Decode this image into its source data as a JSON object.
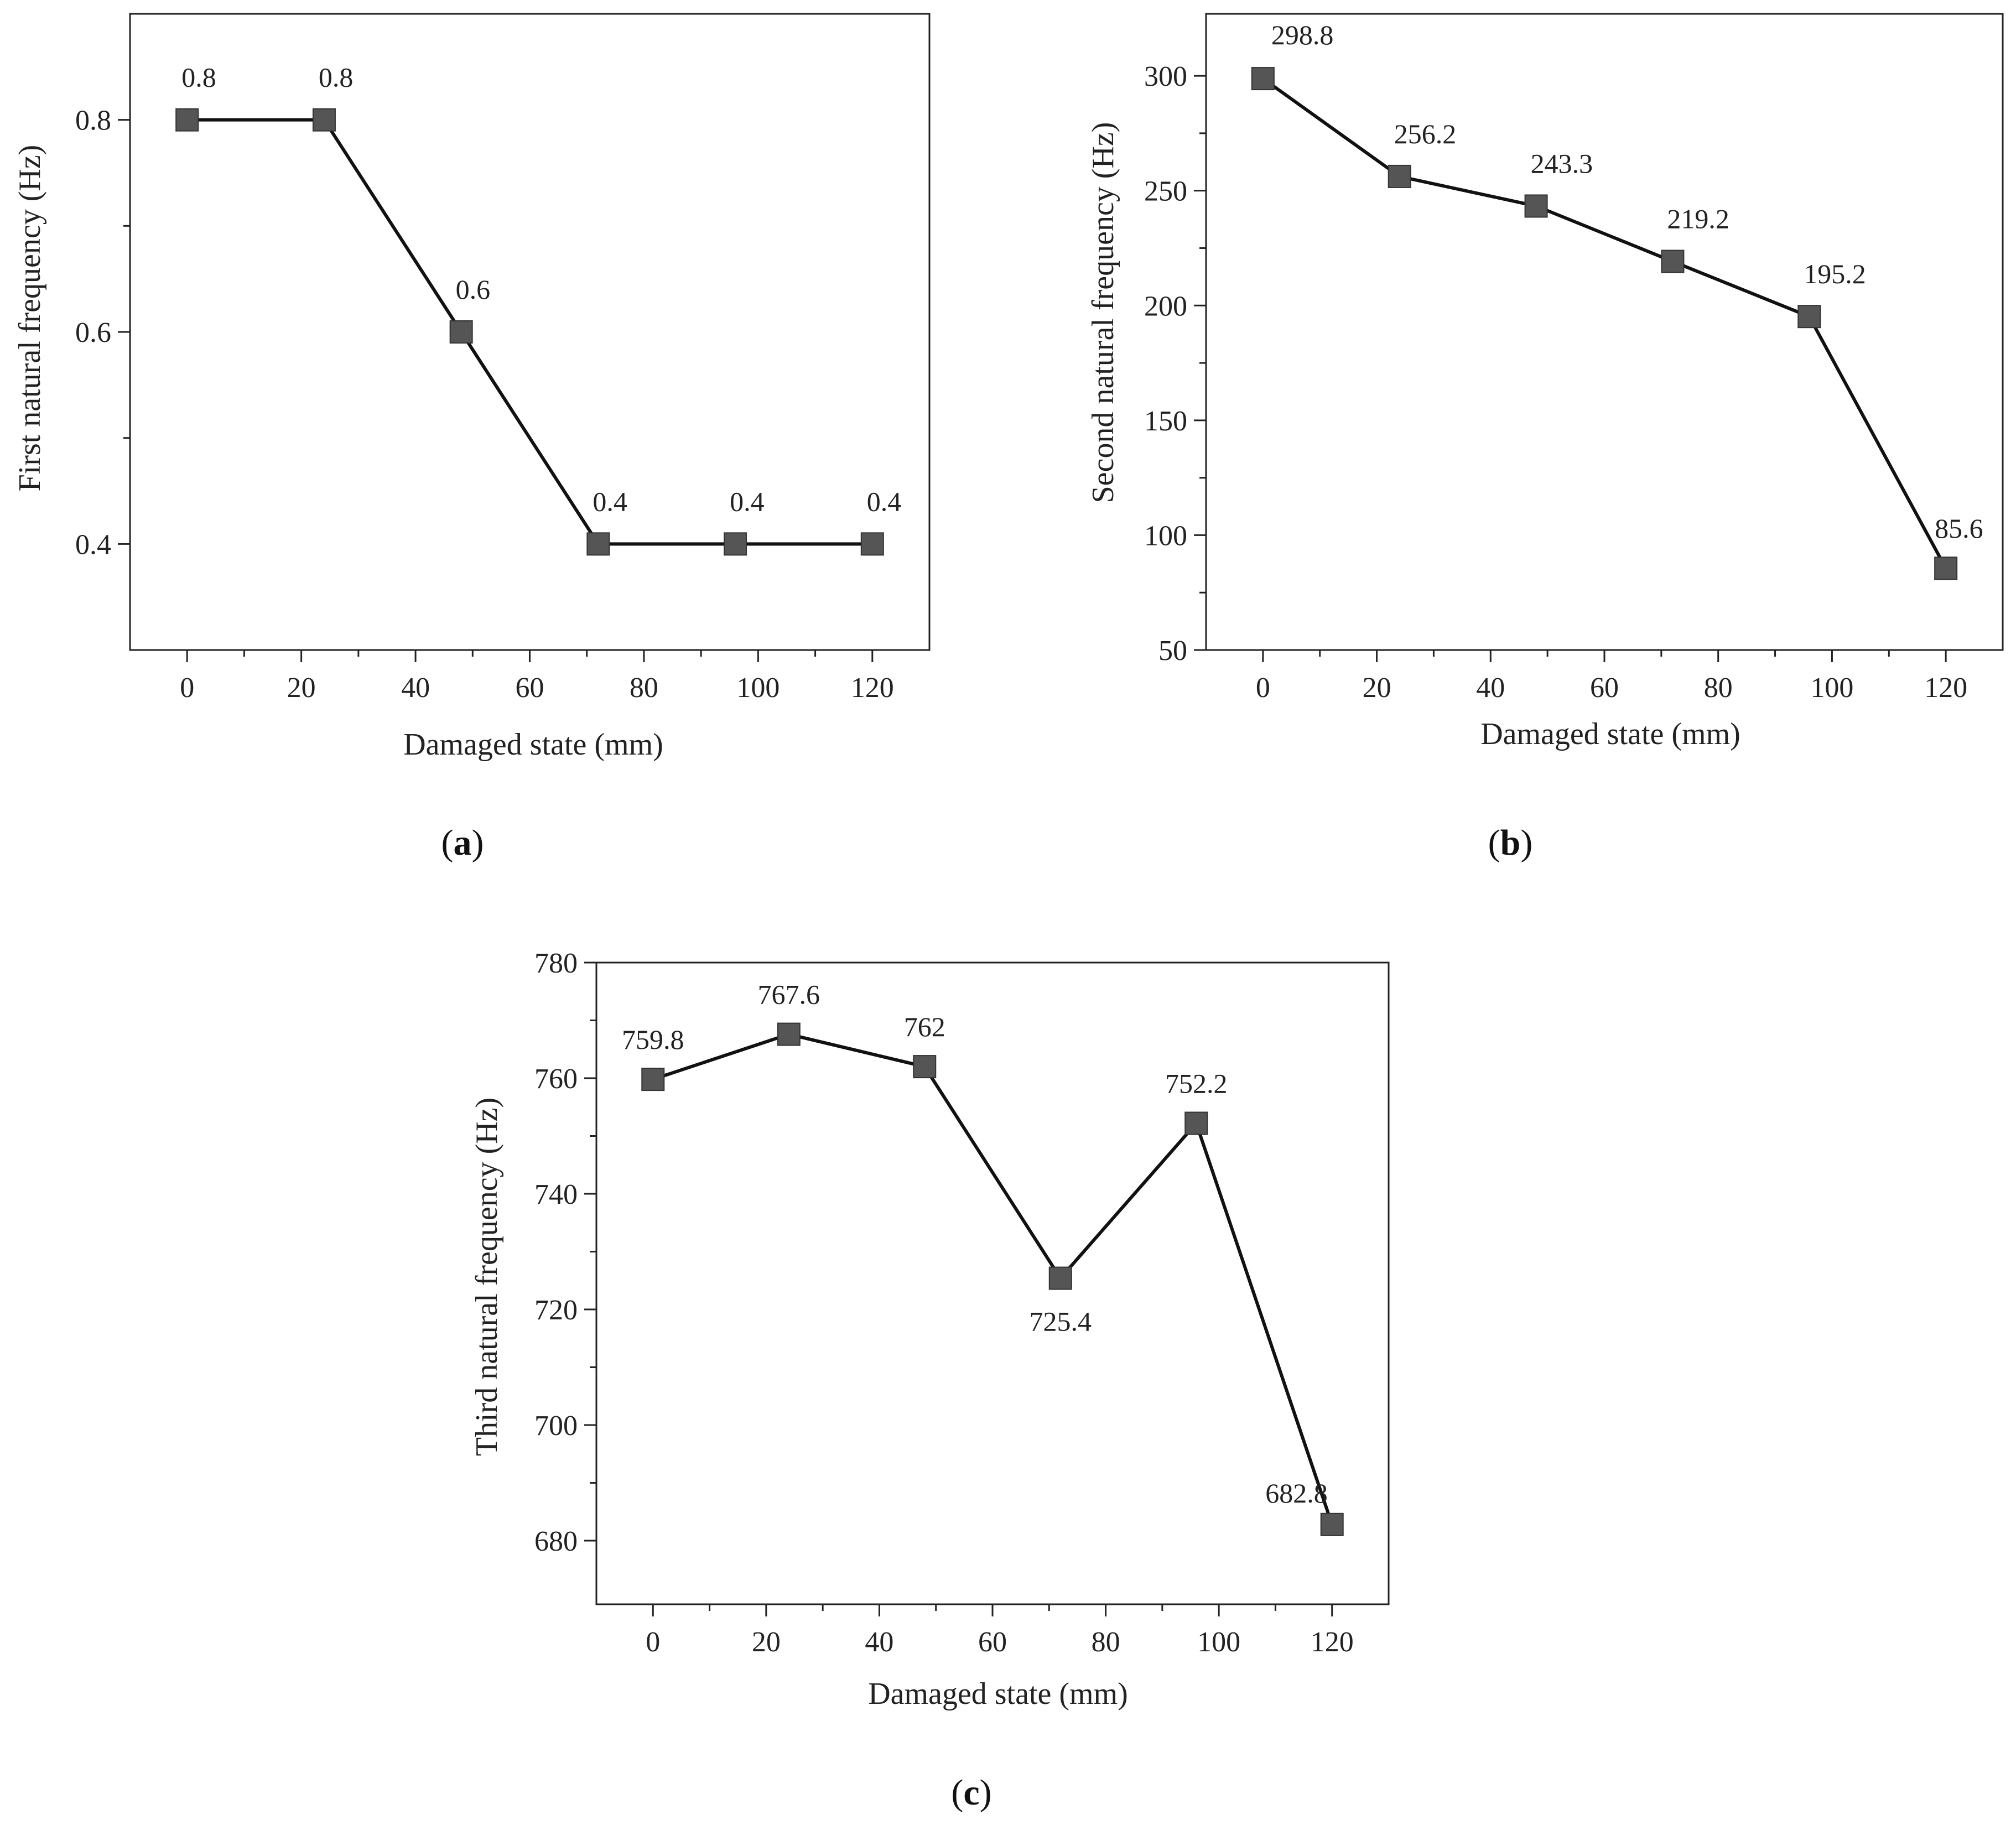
{
  "figure": {
    "captions": [
      "a",
      "b",
      "c"
    ]
  },
  "colors": {
    "marker": "#555555",
    "line": "#111111"
  },
  "chart_data": [
    {
      "type": "line",
      "panel": "a",
      "x": [
        0,
        24,
        48,
        72,
        96,
        120
      ],
      "series": [
        {
          "name": "First natural frequency",
          "values": [
            0.8,
            0.8,
            0.6,
            0.4,
            0.4,
            0.4
          ]
        }
      ],
      "data_labels": [
        "0.8",
        "0.8",
        "0.6",
        "0.4",
        "0.4",
        "0.4"
      ],
      "xlabel": "Damaged state (mm)",
      "ylabel": "First natural frequency (Hz)",
      "xlim": [
        -10,
        130
      ],
      "ylim": [
        0.3,
        0.9
      ],
      "xticks": [
        0,
        20,
        40,
        60,
        80,
        100,
        120
      ],
      "yticks": [
        0.4,
        0.6,
        0.8
      ],
      "ytick_labels": [
        "0.4",
        "0.6",
        "0.8"
      ],
      "label_positions": [
        "above",
        "above",
        "above",
        "above",
        "above",
        "above"
      ]
    },
    {
      "type": "line",
      "panel": "b",
      "x": [
        0,
        24,
        48,
        72,
        96,
        120
      ],
      "series": [
        {
          "name": "Second natural frequency",
          "values": [
            298.8,
            256.2,
            243.3,
            219.2,
            195.2,
            85.6
          ]
        }
      ],
      "data_labels": [
        "298.8",
        "256.2",
        "243.3",
        "219.2",
        "195.2",
        "85.6"
      ],
      "xlabel": "Damaged state (mm)",
      "ylabel": "Second natural frequency (Hz)",
      "xlim": [
        -10,
        130
      ],
      "ylim": [
        50,
        327
      ],
      "xticks": [
        0,
        20,
        40,
        60,
        80,
        100,
        120
      ],
      "yticks": [
        50,
        100,
        150,
        200,
        250,
        300
      ],
      "ytick_labels": [
        "50",
        "100",
        "150",
        "200",
        "250",
        "300"
      ],
      "label_positions": [
        "above",
        "above",
        "above",
        "above",
        "above",
        "above"
      ]
    },
    {
      "type": "line",
      "panel": "c",
      "x": [
        0,
        24,
        48,
        72,
        96,
        120
      ],
      "series": [
        {
          "name": "Third natural frequency",
          "values": [
            759.8,
            767.6,
            762,
            725.4,
            752.2,
            682.8
          ]
        }
      ],
      "data_labels": [
        "759.8",
        "767.6",
        "762",
        "725.4",
        "752.2",
        "682.8"
      ],
      "xlabel": "Damaged state (mm)",
      "ylabel": "Third natural frequency (Hz)",
      "xlim": [
        -10,
        130
      ],
      "ylim": [
        669,
        780
      ],
      "xticks": [
        0,
        20,
        40,
        60,
        80,
        100,
        120
      ],
      "yticks": [
        680,
        700,
        720,
        740,
        760,
        780
      ],
      "ytick_labels": [
        "680",
        "700",
        "720",
        "740",
        "760",
        "780"
      ],
      "label_positions": [
        "above",
        "above",
        "above",
        "below",
        "above",
        "left"
      ]
    }
  ]
}
